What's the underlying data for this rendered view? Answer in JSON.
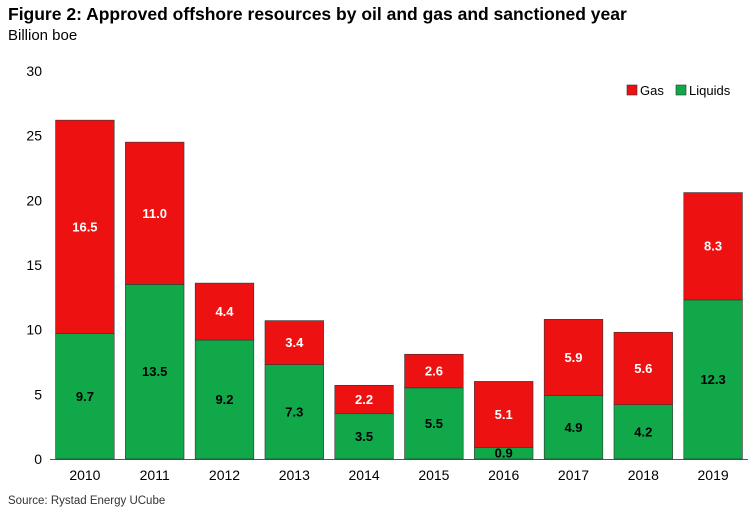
{
  "header": {
    "title": "Figure 2: Approved offshore resources by oil and gas and sanctioned year",
    "subtitle": "Billion boe"
  },
  "footer": {
    "source": "Source: Rystad Energy UCube"
  },
  "chart_data": {
    "type": "bar",
    "stacked": true,
    "categories": [
      "2010",
      "2011",
      "2012",
      "2013",
      "2014",
      "2015",
      "2016",
      "2017",
      "2018",
      "2019"
    ],
    "series": [
      {
        "name": "Liquids",
        "color": "#11a84a",
        "label_color": "#000000",
        "values": [
          9.7,
          13.5,
          9.2,
          7.3,
          3.5,
          5.5,
          0.9,
          4.9,
          4.2,
          12.3
        ],
        "labels": [
          "9.7",
          "13.5",
          "9.2",
          "7.3",
          "3.5",
          "5.5",
          "0.9",
          "4.9",
          "4.2",
          "12.3"
        ]
      },
      {
        "name": "Gas",
        "color": "#ee1111",
        "label_color": "#ffffff",
        "values": [
          16.5,
          11.0,
          4.4,
          3.4,
          2.2,
          2.6,
          5.1,
          5.9,
          5.6,
          8.3
        ],
        "labels": [
          "16.5",
          "11.0",
          "4.4",
          "3.4",
          "2.2",
          "2.6",
          "5.1",
          "5.9",
          "5.6",
          "8.3"
        ]
      }
    ],
    "y_ticks": [
      "0",
      "5",
      "10",
      "15",
      "20",
      "25",
      "30"
    ],
    "ylim": [
      0,
      30
    ],
    "grid": false,
    "legend": {
      "placement": "top-right",
      "order": [
        "Gas",
        "Liquids"
      ]
    }
  }
}
